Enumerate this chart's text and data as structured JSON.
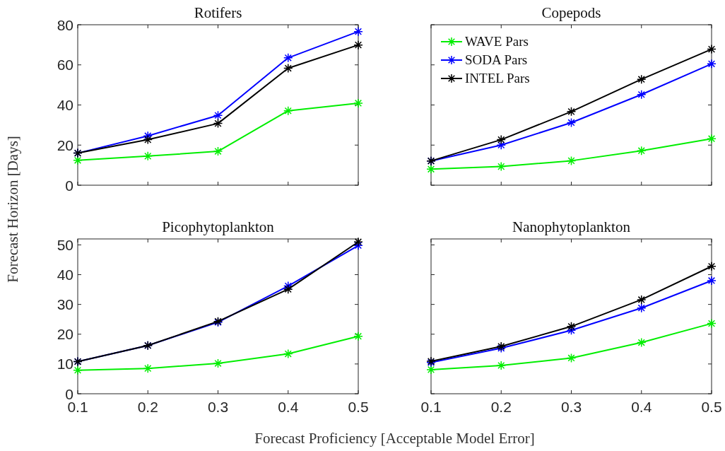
{
  "chart_data": [
    {
      "type": "line",
      "title": "Rotifers",
      "ylabel": "Forecast Horizon [Days]",
      "x": [
        0.1,
        0.2,
        0.3,
        0.4,
        0.5
      ],
      "xlim": [
        0.1,
        0.5
      ],
      "xticks": [
        0.1,
        0.2,
        0.3,
        0.4,
        0.5
      ],
      "ylim": [
        0,
        80
      ],
      "yticks": [
        0,
        20,
        40,
        60,
        80
      ],
      "tick_labels": "y",
      "marker": "cross",
      "grid": false,
      "legend": false,
      "series": [
        {
          "color": "#00ee00",
          "values": [
            12.4,
            14.5,
            16.9,
            37.1,
            40.9
          ]
        },
        {
          "color": "#0000ff",
          "values": [
            16,
            24.6,
            34.8,
            63.5,
            76.6
          ]
        },
        {
          "color": "#000000",
          "values": [
            16,
            22.7,
            30.8,
            58.3,
            69.9
          ]
        }
      ]
    },
    {
      "type": "line",
      "title": "Copepods",
      "x": [
        0.1,
        0.2,
        0.3,
        0.4,
        0.5
      ],
      "xlim": [
        0.1,
        0.5
      ],
      "xticks": [
        0.1,
        0.2,
        0.3,
        0.4,
        0.5
      ],
      "ylim": [
        0,
        80
      ],
      "yticks": [
        0,
        20,
        40,
        60,
        80
      ],
      "tick_labels": false,
      "marker": "cross",
      "grid": false,
      "legend": "top left",
      "series": [
        {
          "name": "WAVE Pars",
          "color": "#00ee00",
          "values": [
            8,
            9.3,
            12.2,
            17.2,
            23.2
          ]
        },
        {
          "name": "SODA Pars",
          "color": "#0000ff",
          "values": [
            12.1,
            20,
            31.2,
            45.2,
            60.5
          ]
        },
        {
          "name": "INTEL Pars",
          "color": "#000000",
          "values": [
            12.1,
            22.7,
            36.7,
            52.8,
            67.8
          ]
        }
      ]
    },
    {
      "type": "line",
      "title": "Picophytoplankton",
      "xlabel": "Forecast Proficiency [Acceptable Model Error]",
      "x": [
        0.1,
        0.2,
        0.3,
        0.4,
        0.5
      ],
      "xlim": [
        0.1,
        0.5
      ],
      "xticks": [
        0.1,
        0.2,
        0.3,
        0.4,
        0.5
      ],
      "ylim": [
        0,
        52
      ],
      "yticks": [
        0,
        10,
        20,
        30,
        40,
        50
      ],
      "marker": "cross",
      "grid": false,
      "legend": false,
      "series": [
        {
          "color": "#00ee00",
          "values": [
            7.9,
            8.5,
            10.2,
            13.4,
            19.3
          ]
        },
        {
          "color": "#0000ff",
          "values": [
            10.8,
            16.2,
            24,
            36.2,
            49.8
          ]
        },
        {
          "color": "#000000",
          "values": [
            10.8,
            16.2,
            24.3,
            35.1,
            51
          ]
        }
      ]
    },
    {
      "type": "line",
      "title": "Nanophytoplankton",
      "x": [
        0.1,
        0.2,
        0.3,
        0.4,
        0.5
      ],
      "xlim": [
        0.1,
        0.5
      ],
      "xticks": [
        0.1,
        0.2,
        0.3,
        0.4,
        0.5
      ],
      "ylim": [
        0,
        52
      ],
      "yticks": [
        0,
        10,
        20,
        30,
        40,
        50
      ],
      "tick_labels": "x",
      "marker": "cross",
      "grid": false,
      "legend": false,
      "series": [
        {
          "color": "#00ee00",
          "values": [
            8.1,
            9.5,
            12,
            17.2,
            23.6
          ]
        },
        {
          "color": "#0000ff",
          "values": [
            10.5,
            15.3,
            21.3,
            28.8,
            38
          ]
        },
        {
          "color": "#000000",
          "values": [
            10.9,
            15.9,
            22.6,
            31.6,
            42.8
          ]
        }
      ]
    }
  ]
}
